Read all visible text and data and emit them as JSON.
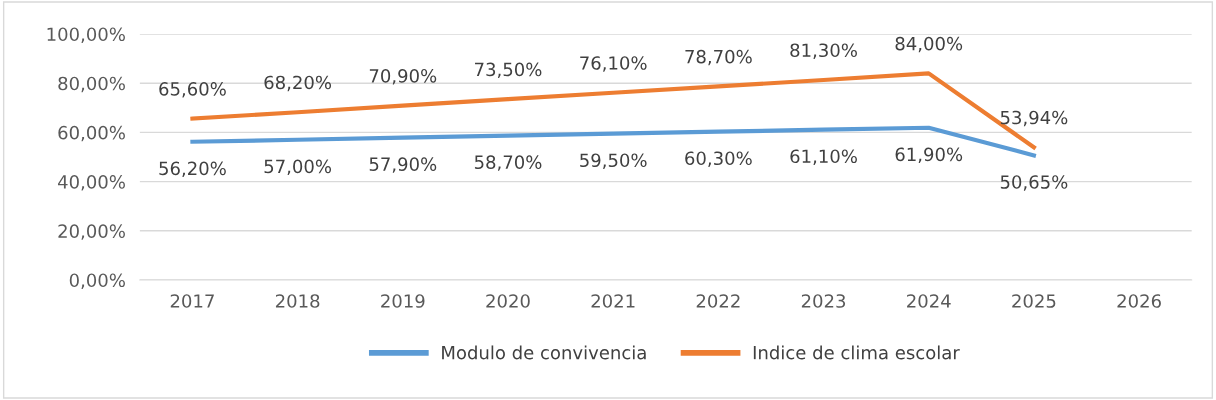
{
  "chart_data": {
    "type": "line",
    "categories": [
      "2017",
      "2018",
      "2019",
      "2020",
      "2021",
      "2022",
      "2023",
      "2024",
      "2025",
      "2026"
    ],
    "series": [
      {
        "name": "Modulo de convivencia",
        "color": "#5b9bd5",
        "values": [
          56.2,
          57.0,
          57.9,
          58.7,
          59.5,
          60.3,
          61.1,
          61.9,
          50.65,
          null
        ],
        "value_labels": [
          "56,20%",
          "57,00%",
          "57,90%",
          "58,70%",
          "59,50%",
          "60,30%",
          "61,10%",
          "61,90%",
          "50,65%",
          null
        ]
      },
      {
        "name": "Indice de clima escolar",
        "color": "#ed7d31",
        "values": [
          65.6,
          68.2,
          70.9,
          73.5,
          76.1,
          78.7,
          81.3,
          84.0,
          53.94,
          null
        ],
        "value_labels": [
          "65,60%",
          "68,20%",
          "70,90%",
          "73,50%",
          "76,10%",
          "78,70%",
          "81,30%",
          "84,00%",
          "53,94%",
          null
        ]
      }
    ],
    "ylim": [
      0,
      100
    ],
    "yticks": [
      {
        "value": 0,
        "label": "0,00%"
      },
      {
        "value": 20,
        "label": "20,00%"
      },
      {
        "value": 40,
        "label": "40,00%"
      },
      {
        "value": 60,
        "label": "60,00%"
      },
      {
        "value": 80,
        "label": "80,00%"
      },
      {
        "value": 100,
        "label": "100,00%"
      }
    ],
    "grid": "y",
    "legend": "bottom",
    "marker": "none",
    "line_style": "solid"
  }
}
